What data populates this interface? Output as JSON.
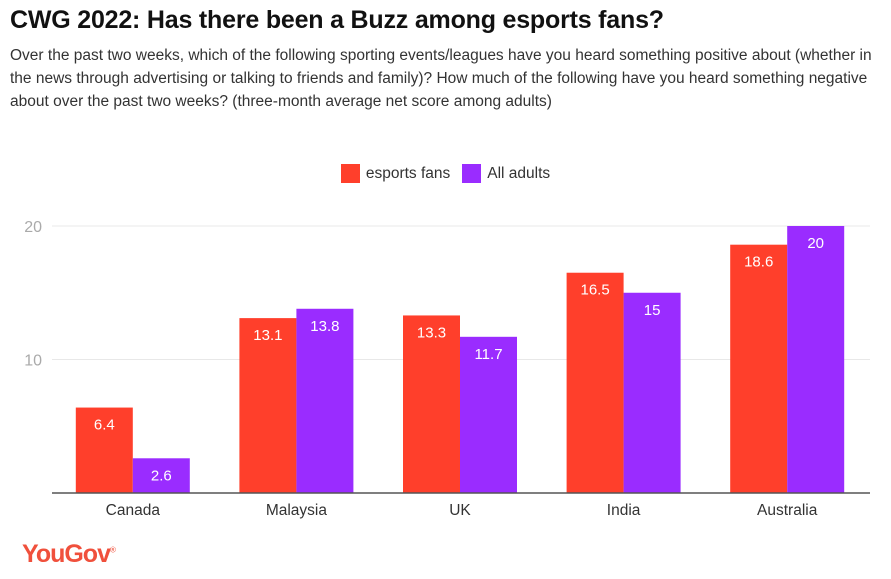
{
  "title": "CWG 2022: Has there been a Buzz among esports fans?",
  "subtitle": "Over the past two weeks, which of the following sporting events/leagues have you heard something positive about (whether in the news through advertising or talking to friends and family)? How much of the following have you heard something negative about over the past two weeks? (three-month average net score among adults)",
  "logo": "YouGov",
  "chart_data": {
    "type": "bar",
    "categories": [
      "Canada",
      "Malaysia",
      "UK",
      "India",
      "Australia"
    ],
    "series": [
      {
        "name": "esports fans",
        "color": "#ff3f2b",
        "values": [
          6.4,
          13.1,
          13.3,
          16.5,
          18.6
        ]
      },
      {
        "name": "All adults",
        "color": "#9a2cff",
        "values": [
          2.6,
          13.8,
          11.7,
          15,
          20
        ]
      }
    ],
    "yticks": [
      10,
      20
    ],
    "ylim": [
      0,
      20
    ],
    "grid": true,
    "legend": "top-center"
  }
}
